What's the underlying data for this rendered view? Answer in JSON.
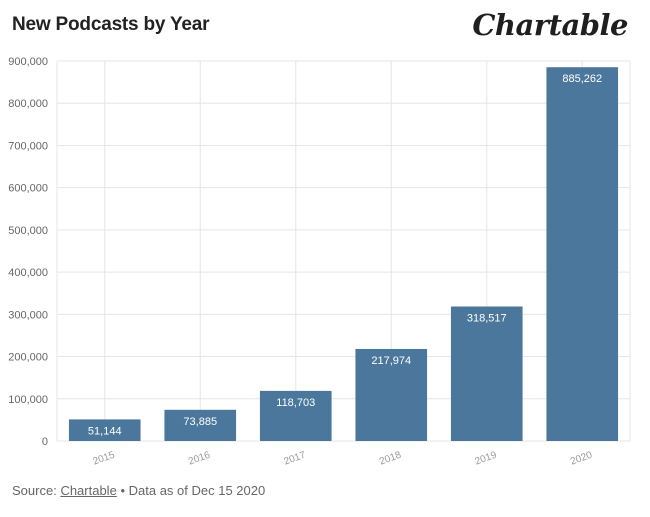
{
  "header": {
    "title": "New Podcasts by Year",
    "logo_text": "Chartable"
  },
  "footer": {
    "source_label": "Source:",
    "source_link": "Chartable",
    "separator": "•",
    "note": "Data as of Dec 15 2020"
  },
  "colors": {
    "bar": "#4a779b",
    "grid": "#e6e6e6",
    "tick_text": "#666666",
    "bar_label": "#ffffff"
  },
  "chart_data": {
    "type": "bar",
    "title": "New Podcasts by Year",
    "xlabel": "",
    "ylabel": "",
    "categories": [
      "2015",
      "2016",
      "2017",
      "2018",
      "2019",
      "2020"
    ],
    "values": [
      51144,
      73885,
      118703,
      217974,
      318517,
      885262
    ],
    "value_labels": [
      "51,144",
      "73,885",
      "118,703",
      "217,974",
      "318,517",
      "885,262"
    ],
    "ylim": [
      0,
      900000
    ],
    "yticks": [
      0,
      100000,
      200000,
      300000,
      400000,
      500000,
      600000,
      700000,
      800000,
      900000
    ],
    "ytick_labels": [
      "0",
      "100,000",
      "200,000",
      "300,000",
      "400,000",
      "500,000",
      "600,000",
      "700,000",
      "800,000",
      "900,000"
    ],
    "grid": true,
    "legend": "none"
  }
}
